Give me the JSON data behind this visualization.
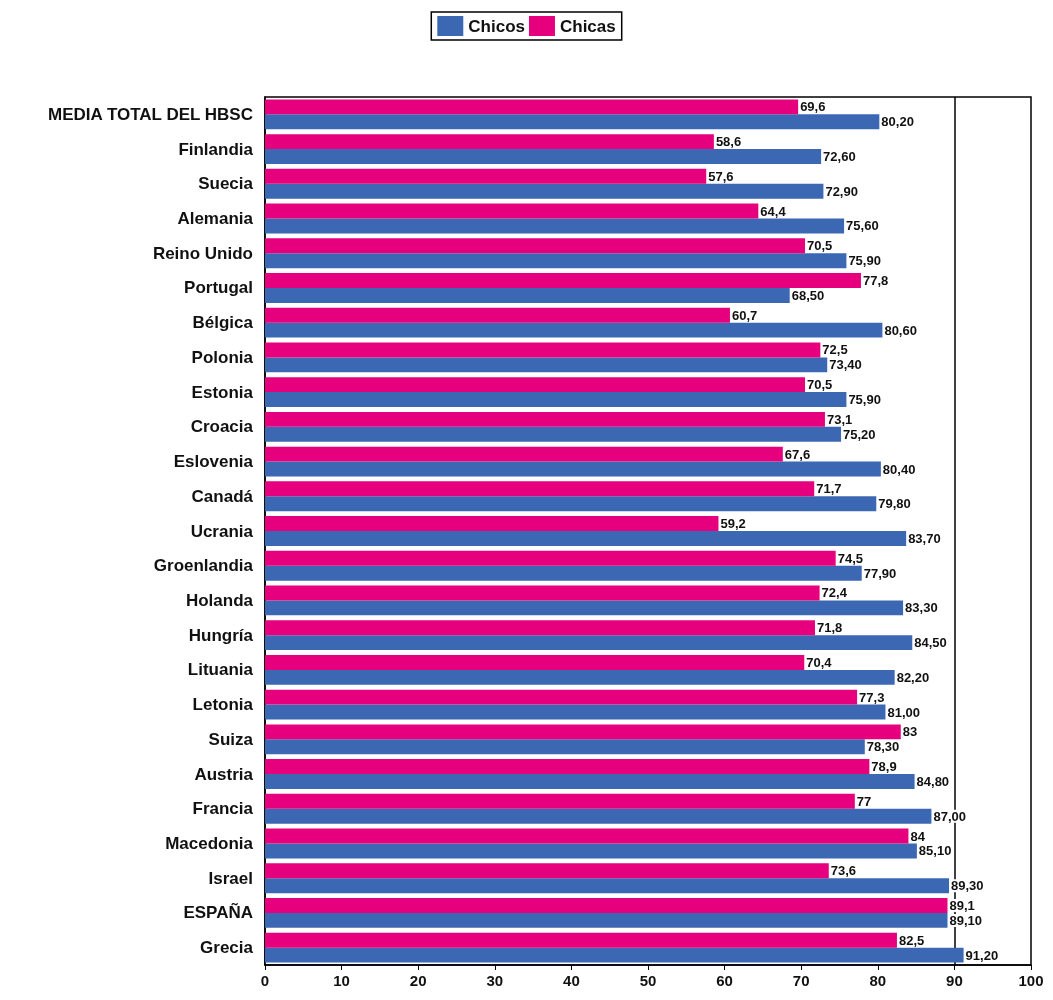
{
  "chart_data": {
    "type": "bar",
    "orientation": "horizontal",
    "categories": [
      "MEDIA TOTAL DEL HBSC",
      "Finlandia",
      "Suecia",
      "Alemania",
      "Reino Unido",
      "Portugal",
      "Bélgica",
      "Polonia",
      "Estonia",
      "Croacia",
      "Eslovenia",
      "Canadá",
      "Ucrania",
      "Groenlandia",
      "Holanda",
      "Hungría",
      "Lituania",
      "Letonia",
      "Suiza",
      "Austria",
      "Francia",
      "Macedonia",
      "Israel",
      "ESPAÑA",
      "Grecia"
    ],
    "series": [
      {
        "name": "Chicos",
        "color": "#3b67b3",
        "values": [
          80.2,
          72.6,
          72.9,
          75.6,
          75.9,
          68.5,
          80.6,
          73.4,
          75.9,
          75.2,
          80.4,
          79.8,
          83.7,
          77.9,
          83.3,
          84.5,
          82.2,
          81.0,
          78.3,
          84.8,
          87.0,
          85.1,
          89.3,
          89.1,
          91.2
        ],
        "value_labels": [
          "80,20",
          "72,60",
          "72,90",
          "75,60",
          "75,90",
          "68,50",
          "80,60",
          "73,40",
          "75,90",
          "75,20",
          "80,40",
          "79,80",
          "83,70",
          "77,90",
          "83,30",
          "84,50",
          "82,20",
          "81,00",
          "78,30",
          "84,80",
          "87,00",
          "85,10",
          "89,30",
          "89,10",
          "91,20"
        ]
      },
      {
        "name": "Chicas",
        "color": "#e6007e",
        "values": [
          69.6,
          58.6,
          57.6,
          64.4,
          70.5,
          77.8,
          60.7,
          72.5,
          70.5,
          73.1,
          67.6,
          71.7,
          59.2,
          74.5,
          72.4,
          71.8,
          70.4,
          77.3,
          83,
          78.9,
          77,
          84,
          73.6,
          89.1,
          82.5
        ],
        "value_labels": [
          "69,6",
          "58,6",
          "57,6",
          "64,4",
          "70,5",
          "77,8",
          "60,7",
          "72,5",
          "70,5",
          "73,1",
          "67,6",
          "71,7",
          "59,2",
          "74,5",
          "72,4",
          "71,8",
          "70,4",
          "77,3",
          "83",
          "78,9",
          "77",
          "84",
          "73,6",
          "89,1",
          "82,5"
        ]
      }
    ],
    "xlim": [
      0,
      100
    ],
    "xticks": [
      0,
      10,
      20,
      30,
      40,
      50,
      60,
      70,
      80,
      90,
      100
    ],
    "ref_lines": [
      {
        "axis": "x",
        "value": 90,
        "label": null,
        "color": "#000000"
      }
    ],
    "grid": false,
    "legend": "top"
  }
}
